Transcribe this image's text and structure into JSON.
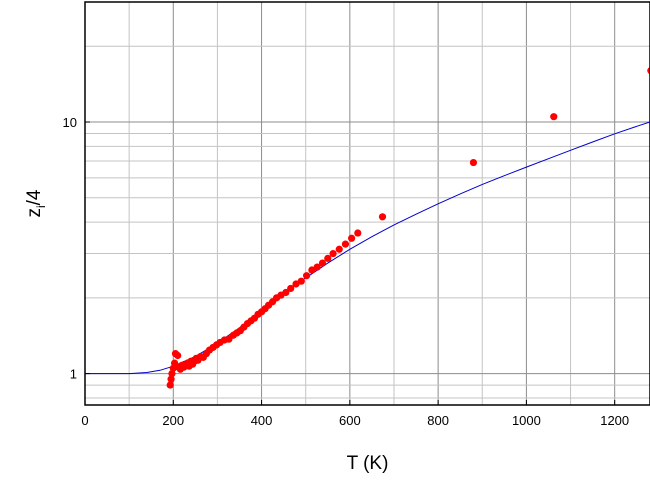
{
  "chart_data": {
    "type": "scatter",
    "xlabel": "T (K)",
    "ylabel": "z",
    "ylabel_sub": "i",
    "ylabel_suffix": "/4",
    "xlim": [
      0,
      1280
    ],
    "ylim": [
      0.75,
      30
    ],
    "y_scale": "log",
    "grid": true,
    "x_ticks": [
      0,
      200,
      400,
      600,
      800,
      1000,
      1200
    ],
    "x_tick_labels": [
      "0",
      "200",
      "400",
      "600",
      "800",
      "1000",
      "1200"
    ],
    "y_ticks": [
      1,
      10
    ],
    "y_tick_labels": [
      "1",
      "10"
    ],
    "series": [
      {
        "kind": "scatter",
        "color": "#ff0000",
        "points": [
          [
            193,
            0.9
          ],
          [
            195,
            0.95
          ],
          [
            197,
            1.0
          ],
          [
            200,
            1.05
          ],
          [
            203,
            1.1
          ],
          [
            205,
            1.2
          ],
          [
            210,
            1.18
          ],
          [
            212,
            1.06
          ],
          [
            216,
            1.04
          ],
          [
            220,
            1.08
          ],
          [
            224,
            1.06
          ],
          [
            228,
            1.08
          ],
          [
            232,
            1.1
          ],
          [
            236,
            1.07
          ],
          [
            240,
            1.12
          ],
          [
            244,
            1.09
          ],
          [
            248,
            1.12
          ],
          [
            252,
            1.15
          ],
          [
            256,
            1.13
          ],
          [
            262,
            1.17
          ],
          [
            268,
            1.16
          ],
          [
            275,
            1.2
          ],
          [
            282,
            1.24
          ],
          [
            290,
            1.27
          ],
          [
            298,
            1.3
          ],
          [
            306,
            1.33
          ],
          [
            316,
            1.36
          ],
          [
            326,
            1.37
          ],
          [
            336,
            1.42
          ],
          [
            344,
            1.45
          ],
          [
            352,
            1.48
          ],
          [
            360,
            1.53
          ],
          [
            368,
            1.58
          ],
          [
            376,
            1.62
          ],
          [
            384,
            1.66
          ],
          [
            392,
            1.72
          ],
          [
            400,
            1.76
          ],
          [
            408,
            1.81
          ],
          [
            416,
            1.87
          ],
          [
            425,
            1.93
          ],
          [
            434,
            2.0
          ],
          [
            444,
            2.05
          ],
          [
            455,
            2.1
          ],
          [
            466,
            2.18
          ],
          [
            478,
            2.27
          ],
          [
            490,
            2.33
          ],
          [
            502,
            2.45
          ],
          [
            514,
            2.58
          ],
          [
            526,
            2.65
          ],
          [
            538,
            2.75
          ],
          [
            550,
            2.87
          ],
          [
            562,
            3.0
          ],
          [
            576,
            3.12
          ],
          [
            590,
            3.27
          ],
          [
            604,
            3.45
          ],
          [
            618,
            3.62
          ],
          [
            674,
            4.2
          ],
          [
            880,
            6.9
          ],
          [
            1062,
            10.5
          ],
          [
            1282,
            16.0
          ]
        ]
      },
      {
        "kind": "line",
        "color": "#0000cc",
        "points": [
          [
            0,
            1.0
          ],
          [
            50,
            1.0
          ],
          [
            100,
            1.0
          ],
          [
            140,
            1.01
          ],
          [
            170,
            1.03
          ],
          [
            200,
            1.07
          ],
          [
            250,
            1.17
          ],
          [
            300,
            1.32
          ],
          [
            350,
            1.52
          ],
          [
            400,
            1.78
          ],
          [
            450,
            2.07
          ],
          [
            500,
            2.4
          ],
          [
            550,
            2.75
          ],
          [
            600,
            3.12
          ],
          [
            650,
            3.5
          ],
          [
            700,
            3.9
          ],
          [
            750,
            4.3
          ],
          [
            800,
            4.73
          ],
          [
            850,
            5.18
          ],
          [
            900,
            5.65
          ],
          [
            950,
            6.12
          ],
          [
            1000,
            6.62
          ],
          [
            1050,
            7.15
          ],
          [
            1100,
            7.72
          ],
          [
            1150,
            8.33
          ],
          [
            1200,
            8.98
          ],
          [
            1250,
            9.62
          ],
          [
            1280,
            10.0
          ]
        ]
      }
    ]
  }
}
